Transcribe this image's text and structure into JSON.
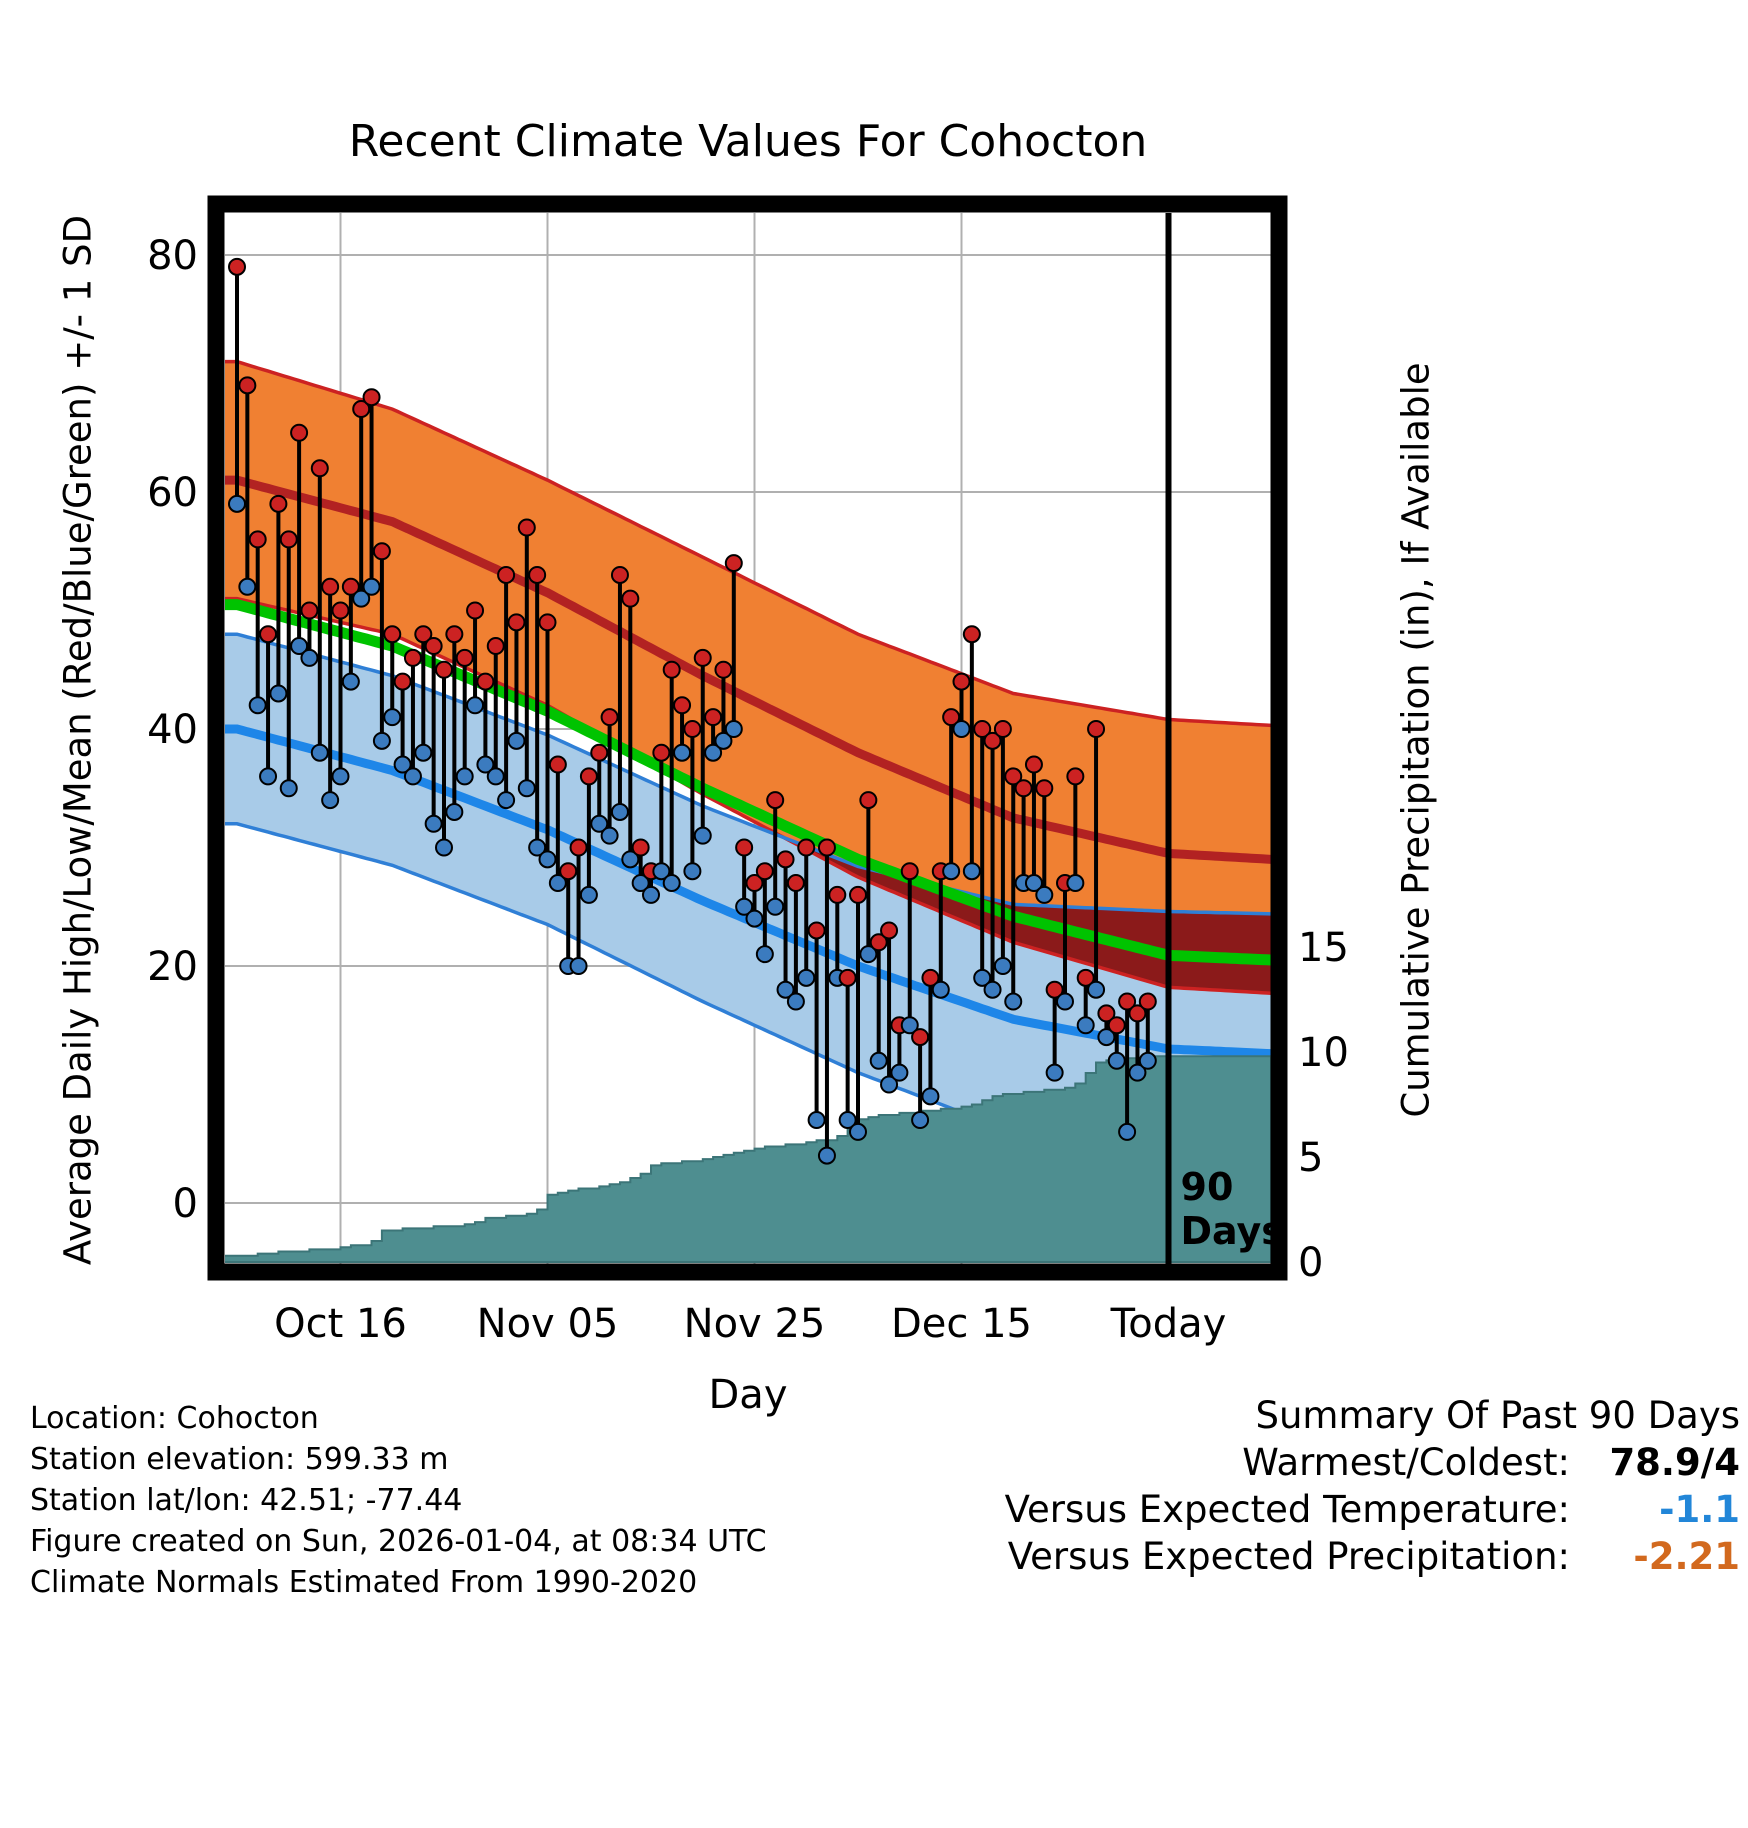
{
  "title": "Recent Climate Values For Cohocton",
  "axes": {
    "left_title": "Average Daily High/Low/Mean (Red/Blue/Green) +/- 1 SD",
    "right_title": "Cumulative Precipitation (in), If Available",
    "x_title": "Day"
  },
  "footer": {
    "lines": [
      "Location: Cohocton",
      "Station elevation: 599.33 m",
      "Station lat/lon: 42.51; -77.44",
      "Figure created on Sun, 2026-01-04, at 08:34 UTC",
      "Climate Normals Estimated From 1990-2020"
    ]
  },
  "summary": {
    "title": "Summary Of Past 90 Days",
    "rows": [
      {
        "label": "Warmest/Coldest:",
        "value": "78.9/4",
        "color": "#000000"
      },
      {
        "label": "Versus Expected Temperature:",
        "value": "-1.1",
        "color": "#2286d8"
      },
      {
        "label": "Versus Expected Precipitation:",
        "value": "-2.21",
        "color": "#d2691e"
      }
    ]
  },
  "chart_data": {
    "type": "line",
    "title": "Recent Climate Values For Cohocton",
    "xlabel": "Day",
    "ylabel_left": "Average Daily High/Low/Mean (Red/Blue/Green) +/- 1 SD",
    "ylabel_right": "Cumulative Precipitation (in), If Available",
    "x_ticks": [
      {
        "day": 10,
        "label": "Oct 16"
      },
      {
        "day": 30,
        "label": "Nov 05"
      },
      {
        "day": 50,
        "label": "Nov 25"
      },
      {
        "day": 70,
        "label": "Dec 15"
      },
      {
        "day": 90,
        "label": "Today"
      }
    ],
    "y_left_ticks": [
      0,
      20,
      40,
      60,
      80
    ],
    "y_right_ticks": [
      0,
      5,
      10,
      15
    ],
    "ylim_left": [
      -5,
      83.5
    ],
    "ylim_right": [
      0,
      22
    ],
    "x_range_days": [
      0,
      100
    ],
    "today_day": 90,
    "annotation": {
      "lines": [
        "90",
        "Days"
      ]
    },
    "daily": {
      "highs": [
        79,
        69,
        56,
        48,
        59,
        56,
        65,
        50,
        62,
        52,
        50,
        52,
        67,
        68,
        55,
        48,
        44,
        46,
        48,
        47,
        45,
        48,
        46,
        50,
        44,
        47,
        53,
        49,
        57,
        53,
        49,
        37,
        28,
        30,
        36,
        38,
        41,
        53,
        51,
        30,
        28,
        38,
        45,
        42,
        40,
        46,
        41,
        45,
        54,
        30,
        27,
        28,
        34,
        29,
        27,
        30,
        23,
        30,
        26,
        19,
        26,
        34,
        22,
        23,
        15,
        28,
        14,
        19,
        28,
        41,
        44,
        48,
        40,
        39,
        40,
        36,
        35,
        37,
        35,
        18,
        27,
        36,
        19,
        40,
        16,
        15,
        17,
        16,
        17
      ],
      "lows": [
        59,
        52,
        42,
        36,
        43,
        35,
        47,
        46,
        38,
        34,
        36,
        44,
        51,
        52,
        39,
        41,
        37,
        36,
        38,
        32,
        30,
        33,
        36,
        42,
        37,
        36,
        34,
        39,
        35,
        30,
        29,
        27,
        20,
        20,
        26,
        32,
        31,
        33,
        29,
        27,
        26,
        28,
        27,
        38,
        28,
        31,
        38,
        39,
        40,
        25,
        24,
        21,
        25,
        18,
        17,
        19,
        7,
        4,
        19,
        7,
        6,
        21,
        12,
        10,
        11,
        15,
        7,
        9,
        18,
        28,
        40,
        28,
        19,
        18,
        20,
        17,
        27,
        27,
        26,
        11,
        17,
        27,
        15,
        18,
        14,
        12,
        6,
        11,
        12
      ]
    },
    "cumulative_precip_in": [
      0.3,
      0.3,
      0.4,
      0.4,
      0.5,
      0.5,
      0.5,
      0.6,
      0.6,
      0.6,
      0.7,
      0.8,
      0.8,
      1.0,
      1.5,
      1.5,
      1.6,
      1.6,
      1.6,
      1.7,
      1.7,
      1.7,
      1.8,
      1.9,
      2.1,
      2.1,
      2.2,
      2.2,
      2.3,
      2.5,
      3.2,
      3.3,
      3.4,
      3.5,
      3.5,
      3.6,
      3.7,
      3.8,
      4.0,
      4.2,
      4.6,
      4.7,
      4.7,
      4.8,
      4.8,
      4.9,
      5.0,
      5.1,
      5.2,
      5.3,
      5.4,
      5.5,
      5.5,
      5.6,
      5.6,
      5.7,
      5.8,
      5.8,
      6.0,
      6.3,
      6.8,
      6.9,
      7.0,
      7.0,
      7.1,
      7.1,
      7.2,
      7.2,
      7.3,
      7.3,
      7.4,
      7.5,
      7.7,
      7.9,
      8.0,
      8.0,
      8.1,
      8.1,
      8.2,
      8.2,
      8.3,
      8.5,
      9.0,
      9.5,
      9.6,
      9.6,
      9.7,
      9.7,
      9.8,
      9.8
    ],
    "climatology": {
      "high_upper": [
        [
          0,
          71
        ],
        [
          15,
          67
        ],
        [
          30,
          61
        ],
        [
          45,
          54.5
        ],
        [
          60,
          48
        ],
        [
          75,
          43
        ],
        [
          90,
          40.8
        ],
        [
          100,
          40.3
        ]
      ],
      "high_mean": [
        [
          0,
          61
        ],
        [
          15,
          57.5
        ],
        [
          30,
          51.5
        ],
        [
          45,
          44.5
        ],
        [
          60,
          38
        ],
        [
          75,
          32.5
        ],
        [
          90,
          29.5
        ],
        [
          100,
          29
        ]
      ],
      "high_lower": [
        [
          0,
          51
        ],
        [
          15,
          48
        ],
        [
          30,
          42
        ],
        [
          45,
          34.5
        ],
        [
          60,
          27.5
        ],
        [
          75,
          22
        ],
        [
          90,
          18.2
        ],
        [
          100,
          17.7
        ]
      ],
      "low_upper": [
        [
          0,
          48
        ],
        [
          15,
          44.5
        ],
        [
          30,
          39.5
        ],
        [
          45,
          33.5
        ],
        [
          60,
          28.4
        ],
        [
          75,
          25.2
        ],
        [
          90,
          24.6
        ],
        [
          100,
          24.4
        ]
      ],
      "low_mean": [
        [
          0,
          40
        ],
        [
          15,
          36.5
        ],
        [
          30,
          31.5
        ],
        [
          45,
          25.5
        ],
        [
          60,
          20
        ],
        [
          75,
          15.5
        ],
        [
          90,
          13
        ],
        [
          100,
          12.6
        ]
      ],
      "low_lower": [
        [
          0,
          32
        ],
        [
          15,
          28.5
        ],
        [
          30,
          23.5
        ],
        [
          45,
          17
        ],
        [
          60,
          11
        ],
        [
          75,
          6
        ],
        [
          90,
          1.5
        ],
        [
          100,
          0.8
        ]
      ],
      "mean": [
        [
          0,
          50.5
        ],
        [
          15,
          47
        ],
        [
          30,
          41.5
        ],
        [
          45,
          35
        ],
        [
          60,
          29
        ],
        [
          75,
          24.2
        ],
        [
          90,
          20.9
        ],
        [
          100,
          20.5
        ]
      ]
    },
    "colors": {
      "grid": "#b0b0b0",
      "high_band": "#f08032",
      "high_line": "#b22222",
      "high_edge": "#cc2222",
      "low_band": "#a8cbe8",
      "low_line": "#1e86e8",
      "low_edge": "#2f7fd6",
      "overlap_band": "#8b1a1a",
      "mean_line": "#00c300",
      "precip_fill": "#4e8e90",
      "precip_edge": "#3c7578",
      "bar": "#000000",
      "high_dot": "#cc2222",
      "low_dot": "#3b7bbf",
      "today_line": "#000000",
      "frame": "#000000"
    },
    "legend_position": "none",
    "grid": true
  }
}
